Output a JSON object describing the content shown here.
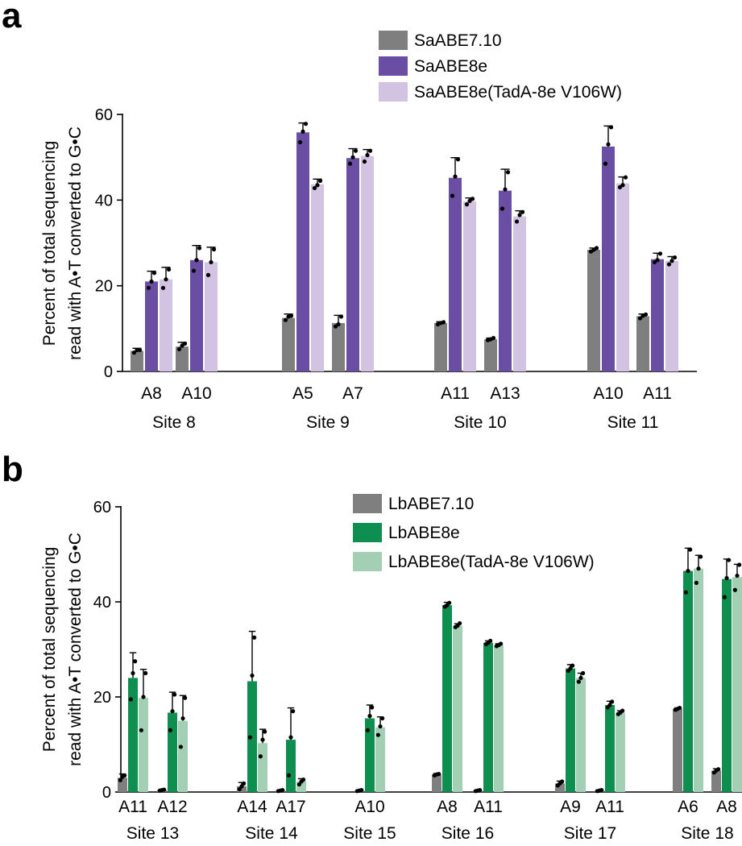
{
  "chart_data": [
    {
      "type": "bar",
      "panel": "a",
      "ylabel_lines": [
        "Percent of total sequencing",
        "read with A•T converted to G•C"
      ],
      "ylim": [
        0,
        60
      ],
      "yticks": [
        0,
        20,
        40,
        60
      ],
      "series_names": [
        "SaABE7.10",
        "SaABE8e",
        "SaABE8e(TadA-8e V106W)"
      ],
      "colors": [
        "#7f7f7f",
        "#6a4ea3",
        "#d2c3e3"
      ],
      "groups": [
        {
          "site": "Site 8",
          "positions": [
            {
              "label": "A8",
              "means": [
                4.8,
                21.0,
                21.5
              ],
              "errs": [
                0.6,
                2.4,
                2.8
              ],
              "pts": [
                [
                  4.4,
                  5.0,
                  5.0
                ],
                [
                  19.5,
                  21.0,
                  23.0
                ],
                [
                  19.5,
                  21.5,
                  23.8
                ]
              ]
            },
            {
              "label": "A10",
              "means": [
                5.8,
                26.0,
                25.5
              ],
              "errs": [
                1.0,
                3.4,
                3.5
              ],
              "pts": [
                [
                  5.2,
                  6.0,
                  6.5
                ],
                [
                  23.5,
                  26.0,
                  28.8
                ],
                [
                  22.5,
                  25.5,
                  28.5
                ]
              ]
            }
          ]
        },
        {
          "site": "Site 9",
          "positions": [
            {
              "label": "A5",
              "means": [
                12.5,
                55.8,
                43.7
              ],
              "errs": [
                0.9,
                2.2,
                1.2
              ],
              "pts": [
                [
                  12.0,
                  12.8,
                  13.0
                ],
                [
                  53.5,
                  56.0,
                  57.8
                ],
                [
                  42.8,
                  43.5,
                  44.5
                ]
              ]
            },
            {
              "label": "A7",
              "means": [
                11.3,
                49.8,
                50.3
              ],
              "errs": [
                1.8,
                2.2,
                1.5
              ],
              "pts": [
                [
                  10.5,
                  11.0,
                  12.8
                ],
                [
                  48.5,
                  50.0,
                  51.5
                ],
                [
                  49.0,
                  50.5,
                  51.5
                ]
              ]
            }
          ]
        },
        {
          "site": "Site 10",
          "positions": [
            {
              "label": "A11",
              "means": [
                11.3,
                45.2,
                39.7
              ],
              "errs": [
                0.3,
                4.7,
                0.8
              ],
              "pts": [
                [
                  11.0,
                  11.3,
                  11.5
                ],
                [
                  41.0,
                  45.5,
                  49.5
                ],
                [
                  39.0,
                  39.8,
                  40.3
                ]
              ]
            },
            {
              "label": "A13",
              "means": [
                7.5,
                42.2,
                36.2
              ],
              "errs": [
                0.3,
                5.0,
                1.3
              ],
              "pts": [
                [
                  7.3,
                  7.5,
                  7.8
                ],
                [
                  38.0,
                  42.5,
                  46.5
                ],
                [
                  35.0,
                  36.5,
                  37.2
                ]
              ]
            }
          ]
        },
        {
          "site": "Site 11",
          "positions": [
            {
              "label": "A10",
              "means": [
                28.4,
                52.5,
                43.9
              ],
              "errs": [
                0.4,
                4.8,
                1.5
              ],
              "pts": [
                [
                  28.0,
                  28.4,
                  28.8
                ],
                [
                  48.5,
                  53.0,
                  57.0
                ],
                [
                  43.0,
                  43.5,
                  45.3
                ]
              ]
            },
            {
              "label": "A11",
              "means": [
                12.9,
                26.2,
                25.8
              ],
              "errs": [
                0.5,
                1.4,
                1.0
              ],
              "pts": [
                [
                  12.4,
                  13.0,
                  13.3
                ],
                [
                  25.5,
                  26.0,
                  27.5
                ],
                [
                  25.0,
                  25.8,
                  26.6
                ]
              ]
            }
          ]
        }
      ]
    },
    {
      "type": "bar",
      "panel": "b",
      "ylabel_lines": [
        "Percent of total sequencing",
        "read with A•T converted to G•C"
      ],
      "ylim": [
        0,
        60
      ],
      "yticks": [
        0,
        20,
        40,
        60
      ],
      "series_names": [
        "LbABE7.10",
        "LbABE8e",
        "LbABE8e(TadA-8e V106W)"
      ],
      "colors": [
        "#7f7f7f",
        "#0f8f4f",
        "#a3d0b4"
      ],
      "groups": [
        {
          "site": "Site 13",
          "positions": [
            {
              "label": "A11",
              "means": [
                3.0,
                24.0,
                19.8
              ],
              "errs": [
                0.8,
                5.3,
                6.0
              ],
              "pts": [
                [
                  2.5,
                  3.2,
                  3.5
                ],
                [
                  19.5,
                  25.0,
                  27.5
                ],
                [
                  13.0,
                  20.0,
                  25.0
                ]
              ]
            },
            {
              "label": "A12",
              "means": [
                0.4,
                16.7,
                15.0
              ],
              "errs": [
                0.1,
                4.3,
                5.3
              ],
              "pts": [
                [
                  0.3,
                  0.4,
                  0.5
                ],
                [
                  13.0,
                  17.0,
                  20.5
                ],
                [
                  9.5,
                  15.5,
                  19.8
                ]
              ]
            }
          ]
        },
        {
          "site": "Site 14",
          "positions": [
            {
              "label": "A14",
              "means": [
                1.2,
                23.3,
                10.3
              ],
              "errs": [
                0.8,
                10.5,
                2.9
              ],
              "pts": [
                [
                  0.6,
                  1.2,
                  1.8
                ],
                [
                  11.5,
                  24.5,
                  32.5
                ],
                [
                  7.5,
                  11.0,
                  12.7
                ]
              ]
            },
            {
              "label": "A17",
              "means": [
                0.3,
                11.0,
                2.2
              ],
              "errs": [
                0.1,
                6.7,
                0.6
              ],
              "pts": [
                [
                  0.2,
                  0.3,
                  0.4
                ],
                [
                  3.5,
                  11.5,
                  17.0
                ],
                [
                  1.6,
                  2.2,
                  2.6
                ]
              ]
            }
          ]
        },
        {
          "site": "Site 15",
          "positions": [
            {
              "label": "A10",
              "means": [
                0.3,
                15.5,
                13.6
              ],
              "errs": [
                0.1,
                2.8,
                2.2
              ],
              "pts": [
                [
                  0.2,
                  0.3,
                  0.4
                ],
                [
                  13.0,
                  16.0,
                  17.8
                ],
                [
                  12.0,
                  13.8,
                  15.5
                ]
              ]
            }
          ]
        },
        {
          "site": "Site 16",
          "positions": [
            {
              "label": "A8",
              "means": [
                3.7,
                39.3,
                35.0
              ],
              "errs": [
                0.2,
                0.6,
                0.4
              ],
              "pts": [
                [
                  3.5,
                  3.7,
                  3.8
                ],
                [
                  39.0,
                  39.3,
                  39.8
                ],
                [
                  34.7,
                  35.0,
                  35.5
                ]
              ]
            },
            {
              "label": "A11",
              "means": [
                0.3,
                31.4,
                30.9
              ],
              "errs": [
                0.1,
                0.4,
                0.3
              ],
              "pts": [
                [
                  0.2,
                  0.3,
                  0.4
                ],
                [
                  31.1,
                  31.4,
                  31.8
                ],
                [
                  30.7,
                  30.9,
                  31.2
                ]
              ]
            }
          ]
        },
        {
          "site": "Site 17",
          "positions": [
            {
              "label": "A9",
              "means": [
                1.8,
                26.0,
                24.0
              ],
              "errs": [
                0.5,
                0.8,
                1.0
              ],
              "pts": [
                [
                  1.4,
                  1.8,
                  2.2
                ],
                [
                  25.5,
                  26.0,
                  26.6
                ],
                [
                  23.2,
                  24.0,
                  25.0
                ]
              ]
            },
            {
              "label": "A11",
              "means": [
                0.3,
                18.3,
                16.7
              ],
              "errs": [
                0.1,
                0.8,
                0.4
              ],
              "pts": [
                [
                  0.2,
                  0.3,
                  0.4
                ],
                [
                  17.8,
                  18.3,
                  19.0
                ],
                [
                  16.4,
                  16.7,
                  17.1
                ]
              ]
            }
          ]
        },
        {
          "site": "Site 18",
          "positions": [
            {
              "label": "A6",
              "means": [
                17.5,
                46.5,
                47.0
              ],
              "errs": [
                0.2,
                4.8,
                2.8
              ],
              "pts": [
                [
                  17.3,
                  17.5,
                  17.7
                ],
                [
                  42.0,
                  46.5,
                  51.0
                ],
                [
                  44.0,
                  47.0,
                  49.5
                ]
              ]
            },
            {
              "label": "A8",
              "means": [
                4.5,
                44.8,
                45.2
              ],
              "errs": [
                0.4,
                4.2,
                2.7
              ],
              "pts": [
                [
                  4.1,
                  4.5,
                  4.8
                ],
                [
                  41.0,
                  45.0,
                  48.8
                ],
                [
                  42.5,
                  45.5,
                  47.8
                ]
              ]
            }
          ]
        }
      ]
    }
  ]
}
